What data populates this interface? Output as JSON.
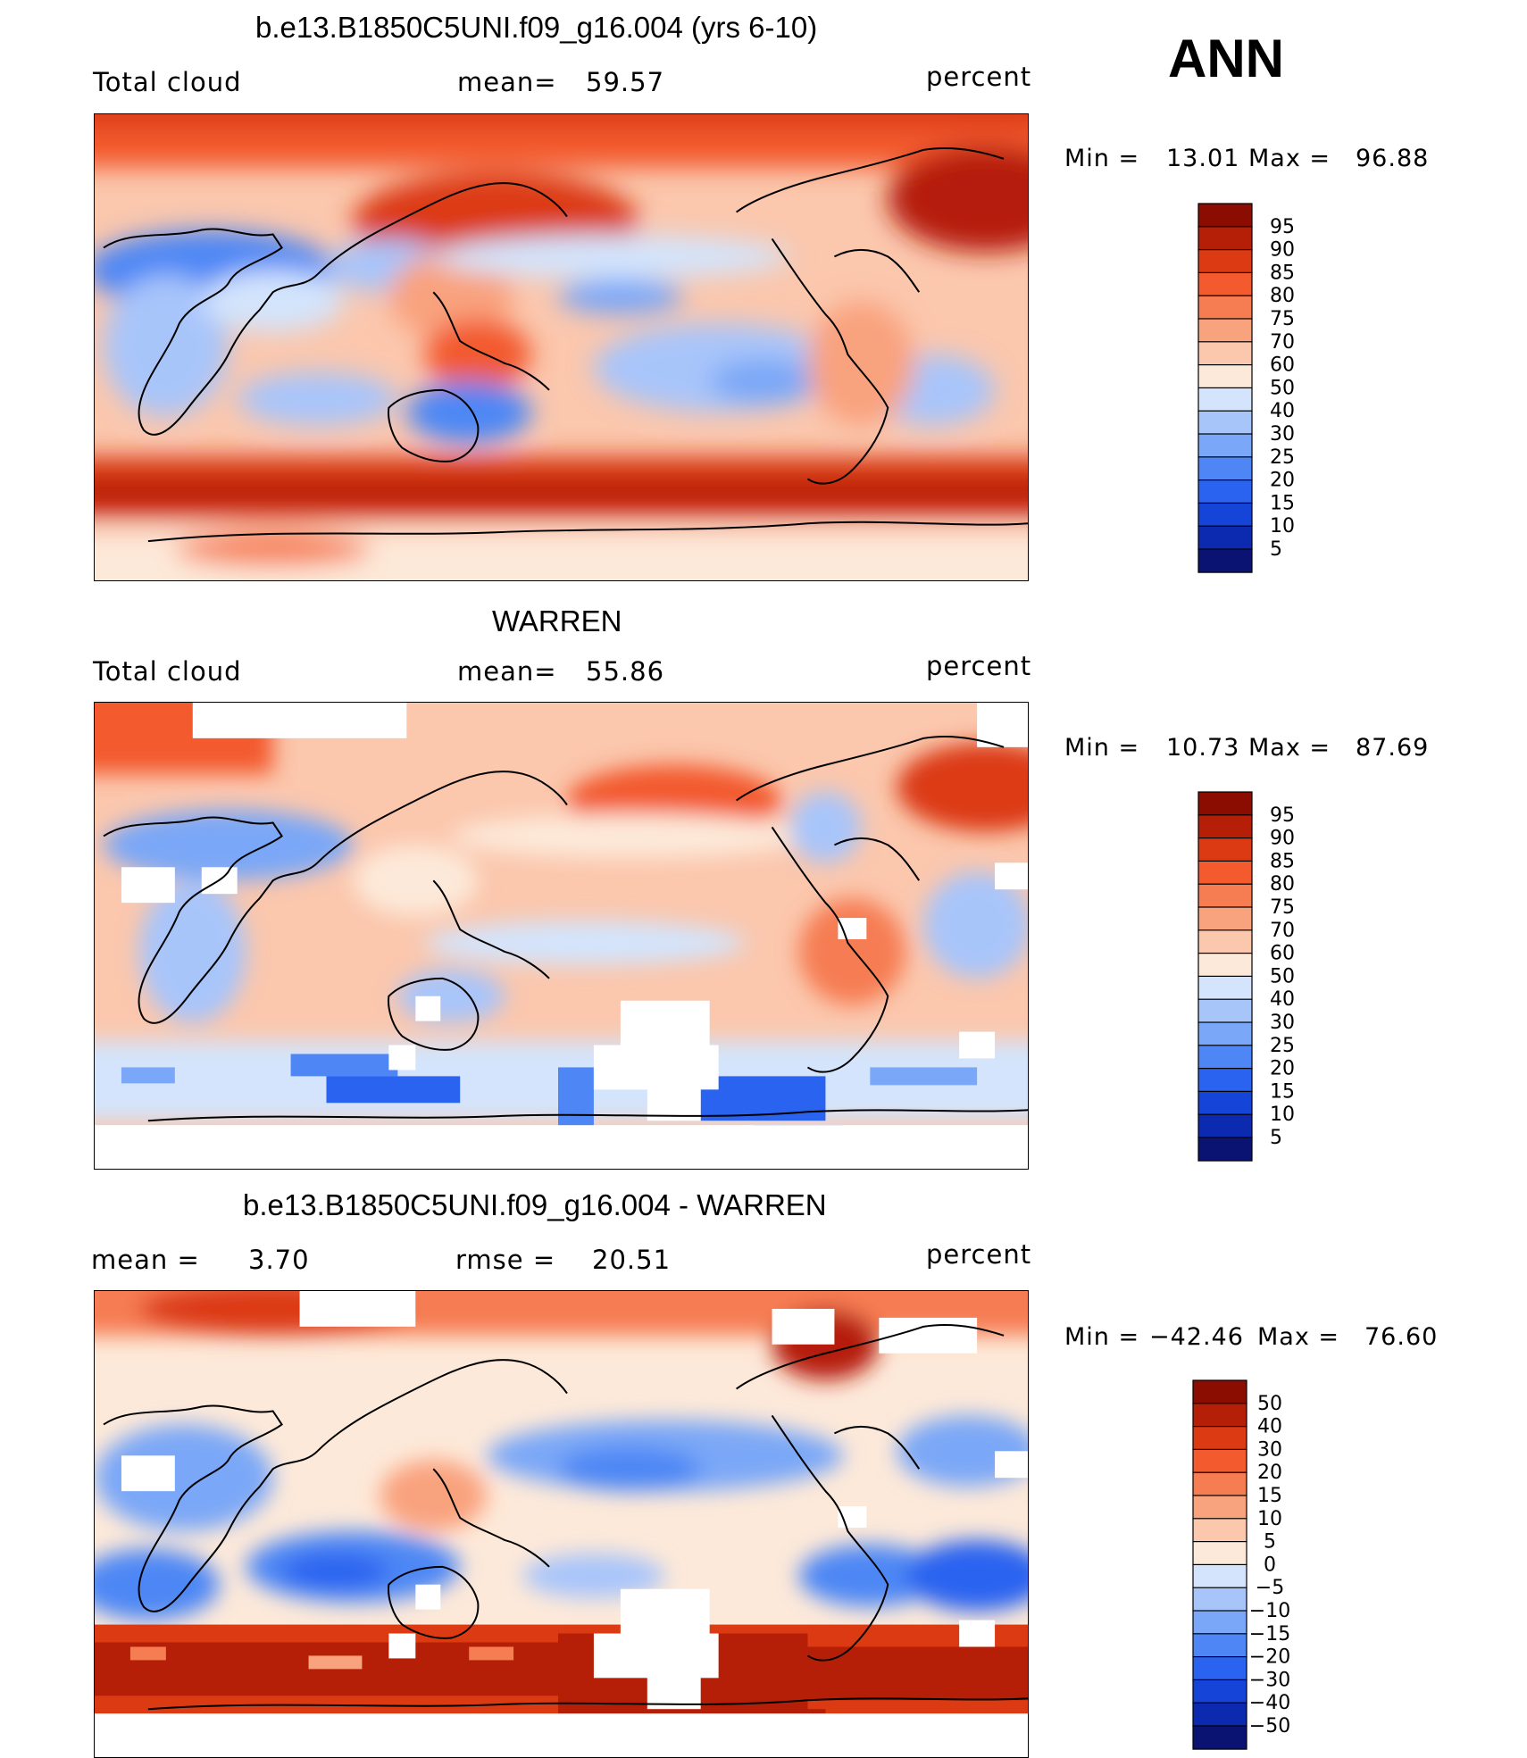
{
  "season": "ANN",
  "units": "percent",
  "colors": {
    "main_palette": [
      "#0a1372",
      "#0b2ab0",
      "#1444d8",
      "#2a63f0",
      "#4e87f5",
      "#7aa7f7",
      "#a8c5fa",
      "#d3e4fc",
      "#fde9d9",
      "#fbc7ad",
      "#f9a27e",
      "#f67d52",
      "#f35a2d",
      "#dc3a12",
      "#b61f07",
      "#8b0d02"
    ],
    "land_outline": "#000000",
    "missing": "#ffffff"
  },
  "panels": [
    {
      "id": "model",
      "title": "b.e13.B1850C5UNI.f09_g16.004 (yrs 6-10)",
      "left_label": "Total cloud",
      "stat_label": "mean=",
      "stat_value": "59.57",
      "units": "percent",
      "min_label": "Min  =",
      "min_value": "13.01",
      "max_label": "Max  =",
      "max_value": "96.88",
      "colorbar_levels": [
        "95",
        "90",
        "85",
        "80",
        "75",
        "70",
        "60",
        "50",
        "40",
        "30",
        "25",
        "20",
        "15",
        "10",
        "5"
      ],
      "map_features": [
        {
          "name": "northern-high-latitude-cloud-band",
          "value": "85-95"
        },
        {
          "name": "north-pacific-storm-track",
          "value": "90"
        },
        {
          "name": "southern-ocean-cloud-band",
          "value": "90-95"
        },
        {
          "name": "sahara-arabia-clear",
          "value": "15-25"
        },
        {
          "name": "australia-clear",
          "value": "25-30"
        },
        {
          "name": "maritime-continent",
          "value": "80-85"
        },
        {
          "name": "subtropical-pacific",
          "value": "40-50"
        }
      ]
    },
    {
      "id": "obs",
      "title": "WARREN",
      "left_label": "Total cloud",
      "stat_label": "mean=",
      "stat_value": "55.86",
      "units": "percent",
      "min_label": "Min  =",
      "min_value": "10.73",
      "max_label": "Max  =",
      "max_value": "87.69",
      "colorbar_levels": [
        "95",
        "90",
        "85",
        "80",
        "75",
        "70",
        "60",
        "50",
        "40",
        "30",
        "25",
        "20",
        "15",
        "10",
        "5"
      ],
      "map_features": [
        {
          "name": "north-pacific",
          "value": "80"
        },
        {
          "name": "north-atlantic",
          "value": "75-80"
        },
        {
          "name": "southern-ocean-sparse",
          "value": "20-40"
        },
        {
          "name": "sahara-clear",
          "value": "20-30"
        },
        {
          "name": "antarctica-missing",
          "value": "no data"
        }
      ]
    },
    {
      "id": "diff",
      "title": "b.e13.B1850C5UNI.f09_g16.004 - WARREN",
      "left_label": "mean =",
      "left_value": "3.70",
      "stat_label": "rmse =",
      "stat_value": "20.51",
      "units": "percent",
      "min_label": "Min  =",
      "min_value": "−42.46",
      "max_label": "Max  =",
      "max_value": "76.60",
      "colorbar_levels": [
        "50",
        "40",
        "30",
        "20",
        "15",
        "10",
        "5",
        "0",
        "−5",
        "−10",
        "−15",
        "−20",
        "−30",
        "−40",
        "−50"
      ],
      "map_features": [
        {
          "name": "southern-ocean-positive-bias",
          "value": "30-50"
        },
        {
          "name": "southern-subtropics-negative-bias",
          "value": "-20 to -30"
        },
        {
          "name": "arctic-positive-bias",
          "value": "30-50"
        },
        {
          "name": "subtropical-pacific-negative-bias",
          "value": "-15 to -20"
        }
      ]
    }
  ]
}
